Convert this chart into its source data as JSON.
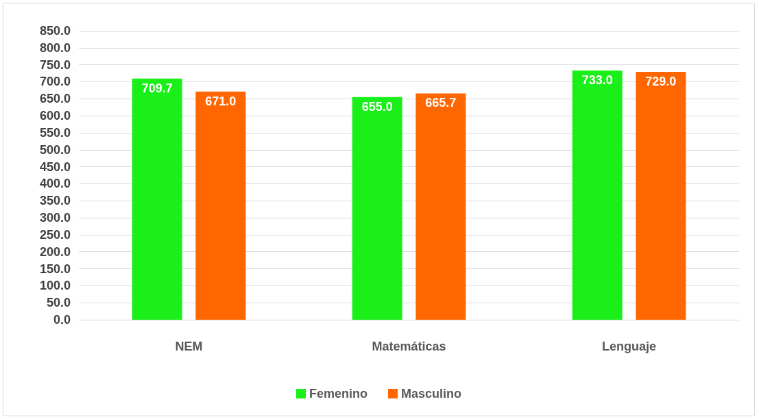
{
  "chart_data": {
    "type": "bar",
    "categories": [
      "NEM",
      "Matemáticas",
      "Lenguaje"
    ],
    "series": [
      {
        "name": "Femenino",
        "color": "#1aef1a",
        "values": [
          709.7,
          655.0,
          733.0
        ],
        "value_labels": [
          "709.7",
          "655.0",
          "733.0"
        ]
      },
      {
        "name": "Masculino",
        "color": "#ff6600",
        "values": [
          671.0,
          665.7,
          729.0
        ],
        "value_labels": [
          "671.0",
          "665.7",
          "729.0"
        ]
      }
    ],
    "ylim": [
      0,
      850
    ],
    "yticks": [
      {
        "value": 0,
        "label": "0.0"
      },
      {
        "value": 50,
        "label": "50.0"
      },
      {
        "value": 100,
        "label": "100.0"
      },
      {
        "value": 150,
        "label": "150.0"
      },
      {
        "value": 200,
        "label": "200.0"
      },
      {
        "value": 250,
        "label": "250.0"
      },
      {
        "value": 300,
        "label": "300.0"
      },
      {
        "value": 350,
        "label": "350.0"
      },
      {
        "value": 400,
        "label": "400.0"
      },
      {
        "value": 450,
        "label": "450.0"
      },
      {
        "value": 500,
        "label": "500.0"
      },
      {
        "value": 550,
        "label": "550.0"
      },
      {
        "value": 600,
        "label": "600.0"
      },
      {
        "value": 650,
        "label": "650.0"
      },
      {
        "value": 700,
        "label": "700.0"
      },
      {
        "value": 750,
        "label": "750.0"
      },
      {
        "value": 800,
        "label": "800.0"
      },
      {
        "value": 850,
        "label": "850.0"
      }
    ],
    "grid": "y",
    "legend": "bottom"
  }
}
